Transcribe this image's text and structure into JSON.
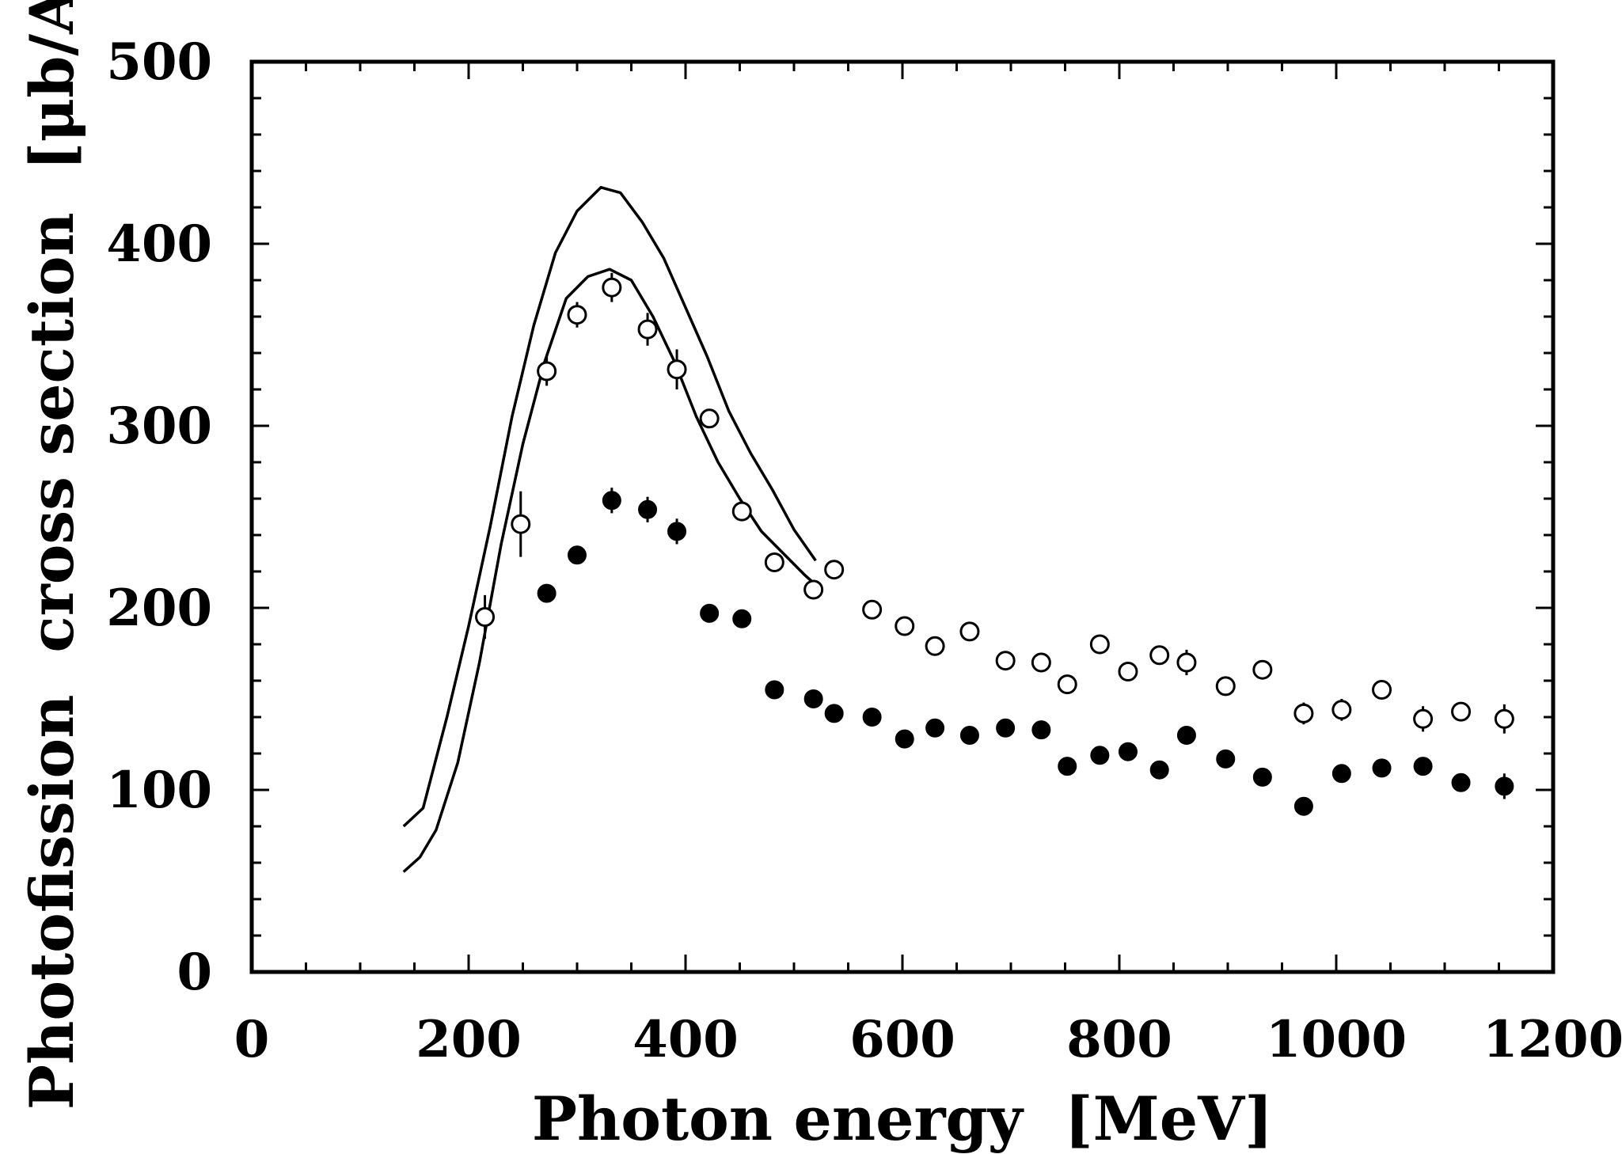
{
  "chart_data": {
    "type": "scatter",
    "title": "",
    "xlabel": "Photon energy  [MeV]",
    "ylabel": "Photofission  cross section  [μb/A]",
    "xlim": [
      0,
      1200
    ],
    "ylim": [
      0,
      500
    ],
    "x_ticks": [
      0,
      200,
      400,
      600,
      800,
      1000,
      1200
    ],
    "y_ticks": [
      0,
      100,
      200,
      300,
      400,
      500
    ],
    "x_tick_labels": [
      "0",
      "200",
      "400",
      "600",
      "800",
      "1000",
      "1200"
    ],
    "y_tick_labels": [
      "0",
      "100",
      "200",
      "300",
      "400",
      "500"
    ],
    "grid": false,
    "legend": "none",
    "series": [
      {
        "marker": "open-circle",
        "points": [
          {
            "x": 215,
            "y": 195,
            "err": 12
          },
          {
            "x": 248,
            "y": 246,
            "err": 18
          },
          {
            "x": 272,
            "y": 330,
            "err": 8
          },
          {
            "x": 300,
            "y": 361,
            "err": 7
          },
          {
            "x": 332,
            "y": 376,
            "err": 8
          },
          {
            "x": 365,
            "y": 353,
            "err": 9
          },
          {
            "x": 392,
            "y": 331,
            "err": 11
          },
          {
            "x": 422,
            "y": 304,
            "err": 5
          },
          {
            "x": 452,
            "y": 253,
            "err": 5
          },
          {
            "x": 482,
            "y": 225,
            "err": 5
          },
          {
            "x": 518,
            "y": 210,
            "err": 5
          },
          {
            "x": 537,
            "y": 221,
            "err": 5
          },
          {
            "x": 572,
            "y": 199,
            "err": 4
          },
          {
            "x": 602,
            "y": 190,
            "err": 4
          },
          {
            "x": 630,
            "y": 179,
            "err": 4
          },
          {
            "x": 662,
            "y": 187,
            "err": 4
          },
          {
            "x": 695,
            "y": 171,
            "err": 4
          },
          {
            "x": 728,
            "y": 170,
            "err": 5
          },
          {
            "x": 752,
            "y": 158,
            "err": 4
          },
          {
            "x": 782,
            "y": 180,
            "err": 5
          },
          {
            "x": 808,
            "y": 165,
            "err": 4
          },
          {
            "x": 837,
            "y": 174,
            "err": 5
          },
          {
            "x": 862,
            "y": 170,
            "err": 7
          },
          {
            "x": 898,
            "y": 157,
            "err": 4
          },
          {
            "x": 932,
            "y": 166,
            "err": 5
          },
          {
            "x": 970,
            "y": 142,
            "err": 6
          },
          {
            "x": 1005,
            "y": 144,
            "err": 6
          },
          {
            "x": 1042,
            "y": 155,
            "err": 5
          },
          {
            "x": 1080,
            "y": 139,
            "err": 7
          },
          {
            "x": 1115,
            "y": 143,
            "err": 5
          },
          {
            "x": 1155,
            "y": 139,
            "err": 8
          }
        ]
      },
      {
        "marker": "filled-circle",
        "points": [
          {
            "x": 272,
            "y": 208,
            "err": 4
          },
          {
            "x": 300,
            "y": 229,
            "err": 4
          },
          {
            "x": 332,
            "y": 259,
            "err": 7
          },
          {
            "x": 365,
            "y": 254,
            "err": 7
          },
          {
            "x": 392,
            "y": 242,
            "err": 7
          },
          {
            "x": 422,
            "y": 197,
            "err": 4
          },
          {
            "x": 452,
            "y": 194,
            "err": 4
          },
          {
            "x": 482,
            "y": 155,
            "err": 4
          },
          {
            "x": 518,
            "y": 150,
            "err": 4
          },
          {
            "x": 537,
            "y": 142,
            "err": 4
          },
          {
            "x": 572,
            "y": 140,
            "err": 4
          },
          {
            "x": 602,
            "y": 128,
            "err": 4
          },
          {
            "x": 630,
            "y": 134,
            "err": 4
          },
          {
            "x": 662,
            "y": 130,
            "err": 4
          },
          {
            "x": 695,
            "y": 134,
            "err": 4
          },
          {
            "x": 728,
            "y": 133,
            "err": 4
          },
          {
            "x": 752,
            "y": 113,
            "err": 4
          },
          {
            "x": 782,
            "y": 119,
            "err": 4
          },
          {
            "x": 808,
            "y": 121,
            "err": 4
          },
          {
            "x": 837,
            "y": 111,
            "err": 4
          },
          {
            "x": 862,
            "y": 130,
            "err": 4
          },
          {
            "x": 898,
            "y": 117,
            "err": 4
          },
          {
            "x": 932,
            "y": 107,
            "err": 4
          },
          {
            "x": 970,
            "y": 91,
            "err": 4
          },
          {
            "x": 1005,
            "y": 109,
            "err": 4
          },
          {
            "x": 1042,
            "y": 112,
            "err": 4
          },
          {
            "x": 1080,
            "y": 113,
            "err": 4
          },
          {
            "x": 1115,
            "y": 104,
            "err": 4
          },
          {
            "x": 1155,
            "y": 102,
            "err": 7
          }
        ]
      }
    ],
    "curves": [
      {
        "style": "solid",
        "points": [
          [
            140,
            80
          ],
          [
            158,
            90
          ],
          [
            180,
            140
          ],
          [
            200,
            190
          ],
          [
            220,
            245
          ],
          [
            240,
            305
          ],
          [
            260,
            355
          ],
          [
            280,
            395
          ],
          [
            300,
            418
          ],
          [
            322,
            431
          ],
          [
            340,
            428
          ],
          [
            360,
            412
          ],
          [
            380,
            392
          ],
          [
            400,
            365
          ],
          [
            420,
            338
          ],
          [
            440,
            308
          ],
          [
            460,
            285
          ],
          [
            480,
            265
          ],
          [
            500,
            243
          ],
          [
            520,
            226
          ]
        ]
      },
      {
        "style": "solid",
        "points": [
          [
            140,
            55
          ],
          [
            155,
            63
          ],
          [
            170,
            78
          ],
          [
            190,
            115
          ],
          [
            210,
            170
          ],
          [
            230,
            235
          ],
          [
            250,
            290
          ],
          [
            270,
            335
          ],
          [
            290,
            370
          ],
          [
            310,
            382
          ],
          [
            330,
            386
          ],
          [
            350,
            380
          ],
          [
            370,
            360
          ],
          [
            390,
            335
          ],
          [
            410,
            305
          ],
          [
            430,
            280
          ],
          [
            450,
            260
          ],
          [
            470,
            242
          ],
          [
            490,
            230
          ],
          [
            510,
            218
          ],
          [
            525,
            210
          ]
        ]
      }
    ]
  }
}
